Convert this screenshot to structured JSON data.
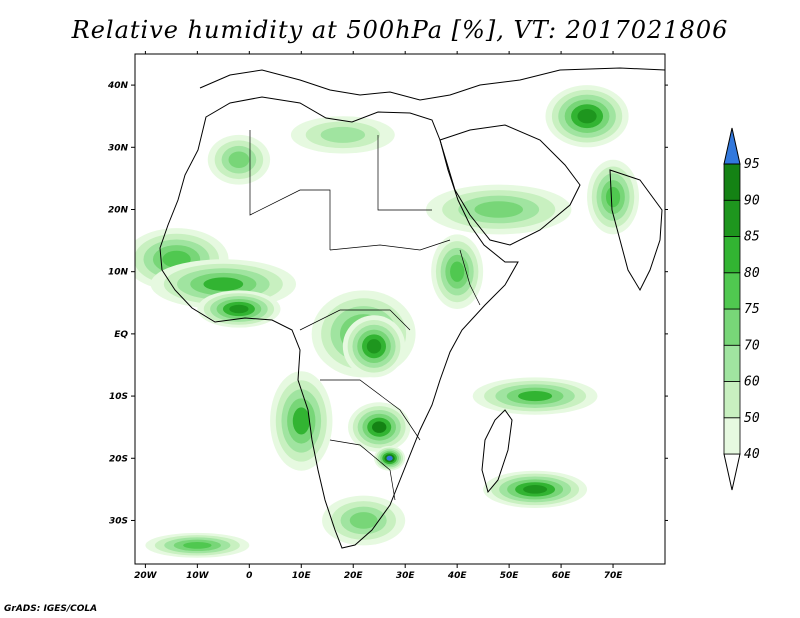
{
  "title": "Relative humidity at 500hPa [%], VT: 2017021806",
  "credit": "GrADS: IGES/COLA",
  "map": {
    "lon_range": [
      -22,
      80
    ],
    "lat_range": [
      -37,
      45
    ],
    "lon_ticks": [
      {
        "value": -20,
        "label": "20W"
      },
      {
        "value": -10,
        "label": "10W"
      },
      {
        "value": 0,
        "label": "0"
      },
      {
        "value": 10,
        "label": "10E"
      },
      {
        "value": 20,
        "label": "20E"
      },
      {
        "value": 30,
        "label": "30E"
      },
      {
        "value": 40,
        "label": "40E"
      },
      {
        "value": 50,
        "label": "50E"
      },
      {
        "value": 60,
        "label": "60E"
      },
      {
        "value": 70,
        "label": "70E"
      }
    ],
    "lat_ticks": [
      {
        "value": 40,
        "label": "40N"
      },
      {
        "value": 30,
        "label": "30N"
      },
      {
        "value": 20,
        "label": "20N"
      },
      {
        "value": 10,
        "label": "10N"
      },
      {
        "value": 0,
        "label": "EQ"
      },
      {
        "value": -10,
        "label": "10S"
      },
      {
        "value": -20,
        "label": "20S"
      },
      {
        "value": -30,
        "label": "30S"
      }
    ]
  },
  "colorbar": {
    "levels": [
      "40",
      "50",
      "60",
      "70",
      "75",
      "80",
      "85",
      "90",
      "95"
    ],
    "colors": [
      "#ffffff",
      "#e6f9e0",
      "#c8f0c0",
      "#a0e4a0",
      "#78d678",
      "#50c850",
      "#32b432",
      "#1e961e",
      "#148214",
      "#3278dc"
    ]
  },
  "humidity_regions": [
    {
      "name": "north-atlantic-band",
      "level": 75,
      "center": [
        -14,
        12
      ],
      "radius": [
        10,
        5
      ]
    },
    {
      "name": "west-africa-coast",
      "level": 80,
      "center": [
        -5,
        8
      ],
      "radius": [
        14,
        4
      ]
    },
    {
      "name": "gulf-of-guinea",
      "level": 85,
      "center": [
        -2,
        4
      ],
      "radius": [
        8,
        3
      ]
    },
    {
      "name": "congo-basin",
      "level": 80,
      "center": [
        22,
        0
      ],
      "radius": [
        10,
        7
      ]
    },
    {
      "name": "congo-basin-core",
      "level": 85,
      "center": [
        24,
        -2
      ],
      "radius": [
        6,
        5
      ]
    },
    {
      "name": "zambia",
      "level": 90,
      "center": [
        25,
        -15
      ],
      "radius": [
        6,
        4
      ]
    },
    {
      "name": "zimbabwe",
      "level": 95,
      "center": [
        27,
        -20
      ],
      "radius": [
        3,
        2
      ]
    },
    {
      "name": "angola-coast",
      "level": 80,
      "center": [
        10,
        -14
      ],
      "radius": [
        6,
        8
      ]
    },
    {
      "name": "indian-ocean-band",
      "level": 80,
      "center": [
        55,
        -10
      ],
      "radius": [
        12,
        3
      ]
    },
    {
      "name": "madagascar-south",
      "level": 85,
      "center": [
        55,
        -25
      ],
      "radius": [
        10,
        3
      ]
    },
    {
      "name": "south-atlantic",
      "level": 75,
      "center": [
        -10,
        -34
      ],
      "radius": [
        10,
        2
      ]
    },
    {
      "name": "arabia-band",
      "level": 70,
      "center": [
        48,
        20
      ],
      "radius": [
        14,
        4
      ]
    },
    {
      "name": "east-africa",
      "level": 75,
      "center": [
        40,
        10
      ],
      "radius": [
        5,
        6
      ]
    },
    {
      "name": "iran",
      "level": 85,
      "center": [
        65,
        35
      ],
      "radius": [
        8,
        5
      ]
    },
    {
      "name": "sahara-north",
      "level": 70,
      "center": [
        -2,
        28
      ],
      "radius": [
        6,
        4
      ]
    },
    {
      "name": "east-mediterranean",
      "level": 60,
      "center": [
        18,
        32
      ],
      "radius": [
        10,
        3
      ]
    },
    {
      "name": "southern-africa-south",
      "level": 70,
      "center": [
        22,
        -30
      ],
      "radius": [
        8,
        4
      ]
    },
    {
      "name": "west-india",
      "level": 75,
      "center": [
        70,
        22
      ],
      "radius": [
        5,
        6
      ]
    }
  ]
}
